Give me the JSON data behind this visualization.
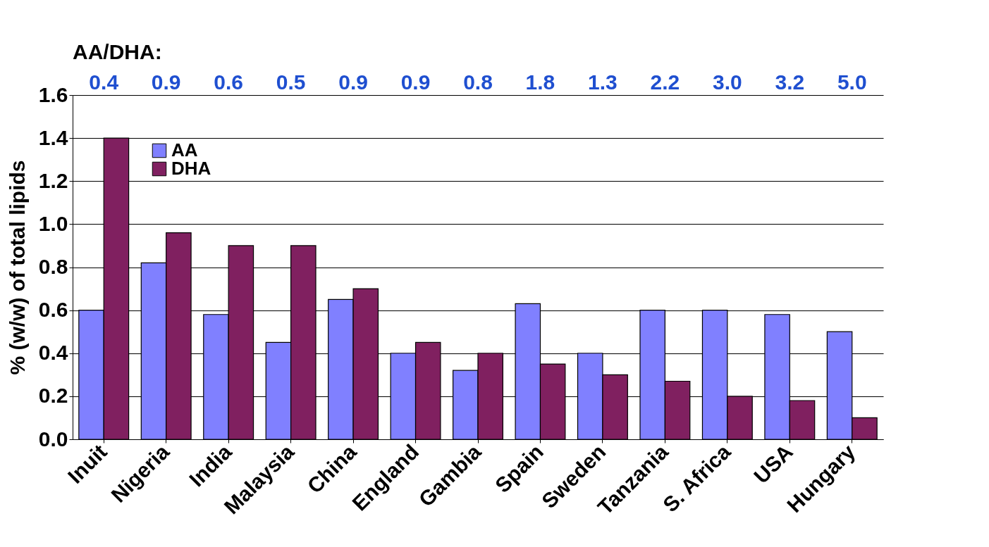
{
  "chart_data": {
    "type": "bar",
    "ylabel": "% (w/w) of total lipids",
    "categories": [
      "Inuit",
      "Nigeria",
      "India",
      "Malaysia",
      "China",
      "England",
      "Gambia",
      "Spain",
      "Sweden",
      "Tanzania",
      "S. Africa",
      "USA",
      "Hungary"
    ],
    "series": [
      {
        "name": "AA",
        "color": "#8080ff",
        "values": [
          0.6,
          0.82,
          0.58,
          0.45,
          0.65,
          0.4,
          0.32,
          0.63,
          0.4,
          0.6,
          0.6,
          0.58,
          0.5
        ]
      },
      {
        "name": "DHA",
        "color": "#802060",
        "values": [
          1.4,
          0.96,
          0.9,
          0.9,
          0.7,
          0.45,
          0.4,
          0.35,
          0.3,
          0.27,
          0.2,
          0.18,
          0.1
        ]
      }
    ],
    "ylim": [
      0,
      1.6
    ],
    "yticks": [
      {
        "value": 0,
        "label": "0.0"
      },
      {
        "value": 0.2,
        "label": "0.2"
      },
      {
        "value": 0.4,
        "label": "0.4"
      },
      {
        "value": 0.6,
        "label": "0.6"
      },
      {
        "value": 0.8,
        "label": "0.8"
      },
      {
        "value": 1.0,
        "label": "1.0"
      },
      {
        "value": 1.2,
        "label": "1.2"
      },
      {
        "value": 1.4,
        "label": "1.4"
      },
      {
        "value": 1.6,
        "label": "1.6"
      }
    ],
    "grid": "y",
    "legend": "top left",
    "annotations": [
      "AA/DHA:",
      "0.4",
      "0.9",
      "0.6",
      "0.5",
      "0.9",
      "0.9",
      "0.8",
      "1.8",
      "1.3",
      "2.2",
      "3.0",
      "3.2",
      "5.0"
    ]
  }
}
